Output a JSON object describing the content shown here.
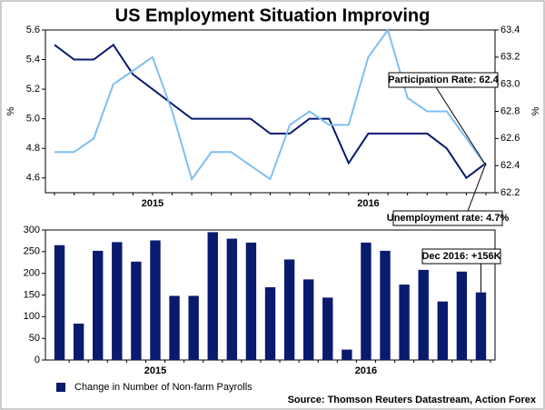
{
  "chart_data": [
    {
      "type": "line",
      "title": "US Employment Situation Improving",
      "categories": [
        null,
        null,
        null,
        null,
        null,
        "2015",
        null,
        null,
        null,
        null,
        null,
        null,
        null,
        null,
        null,
        null,
        "2016",
        null,
        null,
        null,
        null,
        null,
        null
      ],
      "ylabel": "%",
      "y2label": "%",
      "ylim": [
        4.5,
        5.6
      ],
      "yticks": [
        4.6,
        4.8,
        {
          "value": 5,
          "label": "5.0"
        },
        5.2,
        5.4,
        5.6
      ],
      "y2lim": [
        62.2,
        63.4
      ],
      "y2ticks": [
        62.2,
        62.4,
        62.6,
        62.8,
        {
          "value": 63,
          "label": "63.0"
        },
        63.2,
        63.4
      ],
      "series": [
        {
          "name": "Unemployment rate",
          "color": "#0a1a6e",
          "values": [
            5.5,
            5.4,
            5.4,
            5.5,
            5.3,
            5.2,
            5.1,
            5.0,
            5.0,
            5.0,
            5.0,
            4.9,
            4.9,
            5.0,
            5.0,
            4.7,
            4.9,
            4.9,
            4.9,
            4.9,
            4.8,
            4.6,
            4.7
          ]
        },
        {
          "name": "Participation rate",
          "color": "#7fbfef",
          "axis": "y2",
          "values": [
            62.5,
            62.5,
            62.6,
            63.0,
            63.1,
            63.2,
            62.8,
            62.3,
            62.5,
            62.5,
            62.4,
            62.3,
            62.7,
            62.8,
            62.7,
            62.7,
            63.2,
            63.4,
            62.9,
            62.8,
            62.8,
            62.6,
            62.4
          ]
        }
      ],
      "annotations": [
        "Participation Rate: 62.4",
        "Unemployment rate: 4.7%"
      ]
    },
    {
      "type": "bar",
      "categories": [
        null,
        null,
        null,
        null,
        null,
        "2015",
        null,
        null,
        null,
        null,
        null,
        null,
        null,
        null,
        null,
        null,
        "2016",
        null,
        null,
        null,
        null,
        null,
        null
      ],
      "ylim": [
        0,
        300
      ],
      "yticks": [
        0,
        50,
        100,
        150,
        200,
        250,
        300
      ],
      "series": [
        {
          "name": "Change in Number of Non-farm Payrolls",
          "color": "#0a1a6e",
          "values": [
            265,
            84,
            252,
            272,
            227,
            276,
            148,
            148,
            295,
            280,
            271,
            168,
            232,
            186,
            144,
            24,
            271,
            252,
            174,
            208,
            135,
            204,
            156
          ]
        }
      ],
      "annotations": [
        "Dec 2016: +156K"
      ],
      "source": "Source: Thomson Reuters Datastream, Action Forex"
    }
  ]
}
